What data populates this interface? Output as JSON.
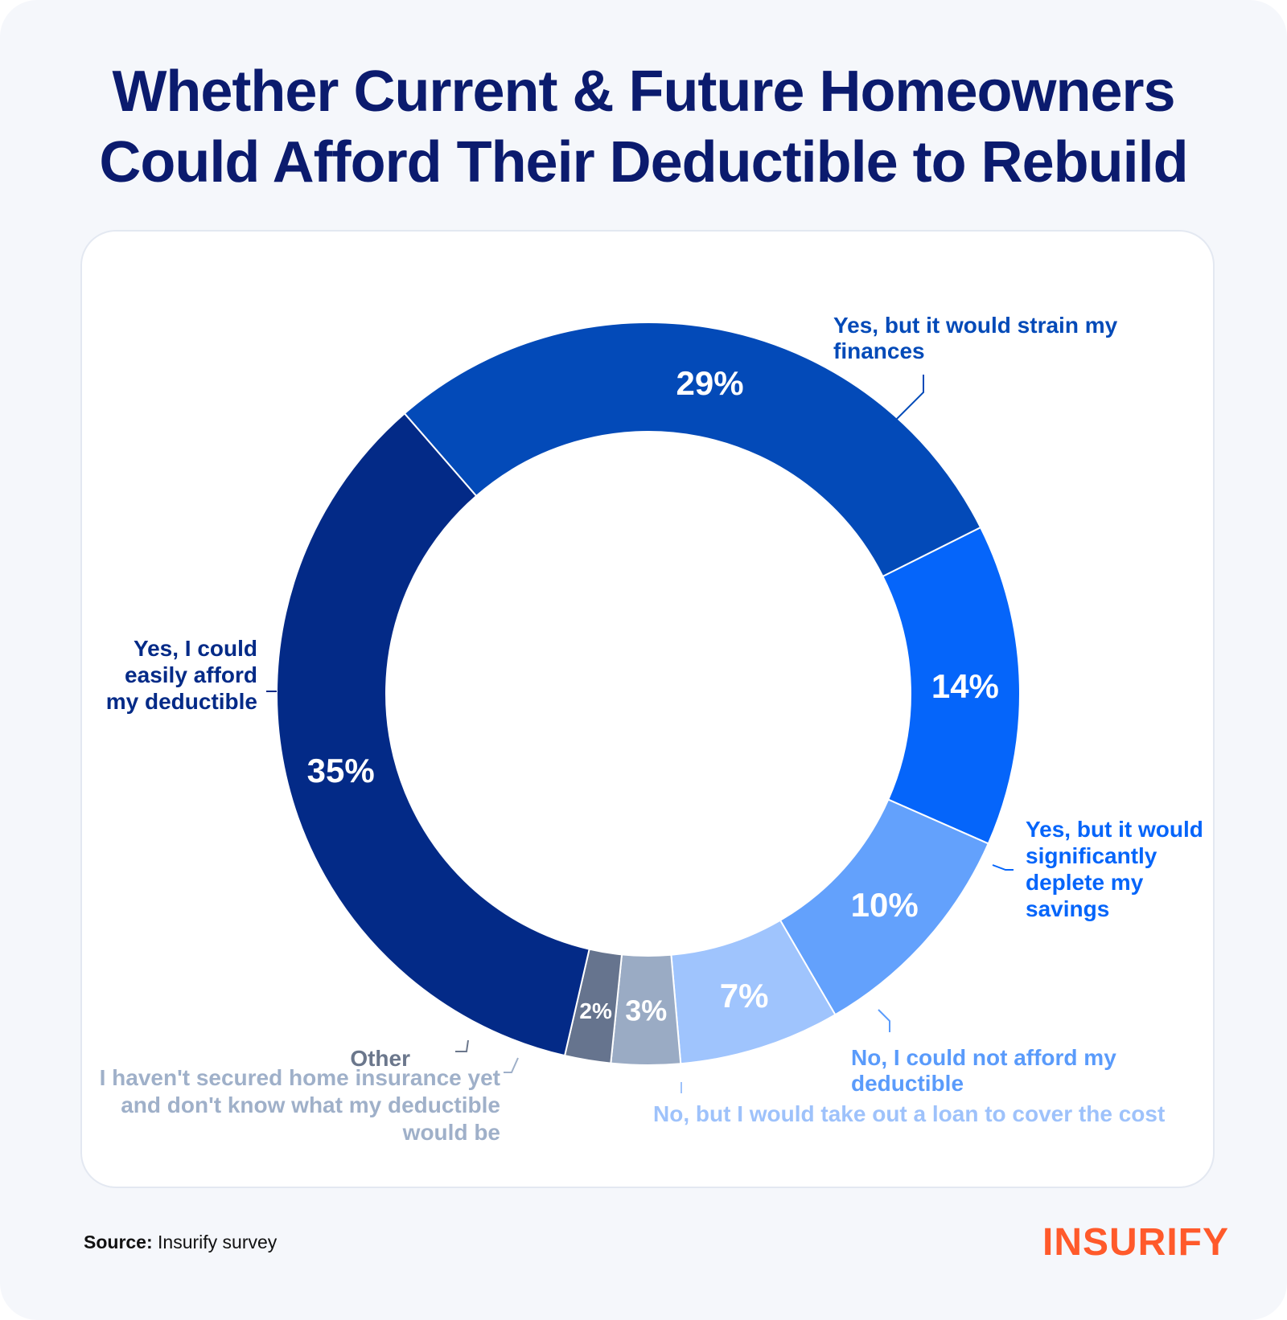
{
  "title_lines": [
    "Whether Current & Future Homeowners",
    "Could Afford Their Deductible to Rebuild"
  ],
  "source_label": "Source:",
  "source_text": "Insurify survey",
  "logo_text": "INSURIFY",
  "colors": {
    "title": "#0b1b6e",
    "logo": "#ff5a2b"
  },
  "chart_data": {
    "type": "pie",
    "donut": true,
    "title": "Whether Current & Future Homeowners Could Afford Their Deductible to Rebuild",
    "unit": "%",
    "slices": [
      {
        "id": "strain",
        "label_lines": [
          "Yes, but it would strain my",
          "finances"
        ],
        "value": 29,
        "display": "29%",
        "color": "#034ab8",
        "label_color": "#034ab8"
      },
      {
        "id": "deplete",
        "label_lines": [
          "Yes, but it would",
          "significantly",
          "deplete my",
          "savings"
        ],
        "value": 14,
        "display": "14%",
        "color": "#0565fa",
        "label_color": "#0565fa"
      },
      {
        "id": "cannot",
        "label_lines": [
          "No, I could not afford my",
          "deductible"
        ],
        "value": 10,
        "display": "10%",
        "color": "#63a1fc",
        "label_color": "#5a9bfb"
      },
      {
        "id": "loan",
        "label_lines": [
          "No, but I would take out a loan to cover the cost"
        ],
        "value": 7,
        "display": "7%",
        "color": "#9fc4fd",
        "label_color": "#9ec2fb"
      },
      {
        "id": "not_secured",
        "label_lines": [
          "I haven't secured home insurance yet",
          "and don't know what my deductible",
          "would be"
        ],
        "value": 3,
        "display": "3%",
        "color": "#9aabc4",
        "label_color": "#9fb0c9"
      },
      {
        "id": "other",
        "label_lines": [
          "Other"
        ],
        "value": 2,
        "display": "2%",
        "color": "#66748e",
        "label_color": "#6b778c"
      },
      {
        "id": "easily",
        "label_lines": [
          "Yes, I could",
          "easily afford",
          "my deductible"
        ],
        "value": 35,
        "display": "35%",
        "color": "#032a87",
        "label_color": "#032a87"
      }
    ]
  }
}
